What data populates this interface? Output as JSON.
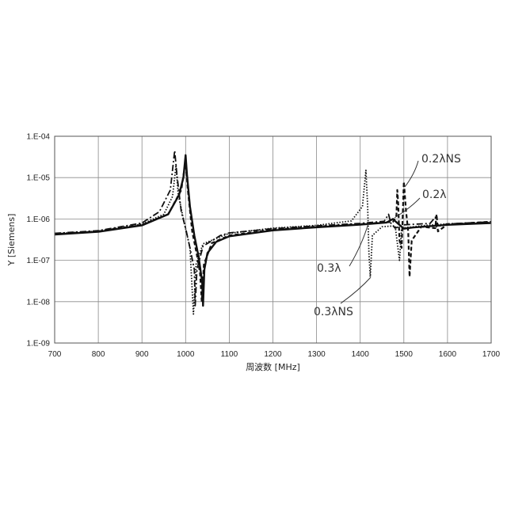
{
  "chart_data": {
    "type": "line",
    "title": "",
    "xlabel": "周波数 [MHz]",
    "ylabel": "Y [Siemens]",
    "xlim": [
      700,
      1700
    ],
    "ylim": [
      1e-09,
      0.0001
    ],
    "yscale": "log",
    "grid": true,
    "x_ticks": [
      "700",
      "800",
      "900",
      "1000",
      "1100",
      "1200",
      "1300",
      "1400",
      "1500",
      "1600",
      "1700"
    ],
    "y_ticks": [
      "1.E-09",
      "1.E-08",
      "1.E-07",
      "1.E-06",
      "1.E-05",
      "1.E-04"
    ],
    "annotations": [
      {
        "text": "0.2λNS",
        "points_to_x": 1500
      },
      {
        "text": "0.2λ",
        "points_to_x": 1480
      },
      {
        "text": "0.3λ",
        "points_to_x": 1455
      },
      {
        "text": "0.3λNS",
        "points_to_x": 1430
      }
    ],
    "series": [
      {
        "style": "solid",
        "points": [
          [
            700,
            4.2e-07
          ],
          [
            800,
            4.9e-07
          ],
          [
            900,
            7e-07
          ],
          [
            960,
            1.3e-06
          ],
          [
            985,
            3.8e-06
          ],
          [
            995,
            1e-05
          ],
          [
            1000,
            3.5e-05
          ],
          [
            1003,
            1.2e-05
          ],
          [
            1010,
            2e-06
          ],
          [
            1020,
            4e-07
          ],
          [
            1030,
            1.2e-07
          ],
          [
            1038,
            3e-08
          ],
          [
            1040,
            8e-09
          ],
          [
            1043,
            6e-08
          ],
          [
            1050,
            1.5e-07
          ],
          [
            1070,
            2.8e-07
          ],
          [
            1100,
            3.8e-07
          ],
          [
            1200,
            5.3e-07
          ],
          [
            1300,
            6.3e-07
          ],
          [
            1400,
            7.3e-07
          ],
          [
            1460,
            8.2e-07
          ],
          [
            1475,
            1e-06
          ],
          [
            1485,
            8e-07
          ],
          [
            1500,
            5.8e-07
          ],
          [
            1520,
            6.2e-07
          ],
          [
            1600,
            7.2e-07
          ],
          [
            1700,
            8e-07
          ]
        ]
      },
      {
        "style": "dash-dot",
        "points": [
          [
            700,
            4.5e-07
          ],
          [
            800,
            5.2e-07
          ],
          [
            900,
            8e-07
          ],
          [
            940,
            1.5e-06
          ],
          [
            965,
            5e-06
          ],
          [
            975,
            4.5e-05
          ],
          [
            980,
            1.2e-05
          ],
          [
            990,
            1.5e-06
          ],
          [
            1000,
            6e-07
          ],
          [
            1010,
            2e-07
          ],
          [
            1020,
            6e-08
          ],
          [
            1022,
            8e-09
          ],
          [
            1026,
            6e-08
          ],
          [
            1040,
            2.2e-07
          ],
          [
            1080,
            4e-07
          ],
          [
            1100,
            4.6e-07
          ],
          [
            1200,
            5.8e-07
          ],
          [
            1300,
            6.8e-07
          ],
          [
            1400,
            7.8e-07
          ],
          [
            1455,
            8.8e-07
          ],
          [
            1465,
            1.3e-06
          ],
          [
            1470,
            8e-07
          ],
          [
            1480,
            6e-07
          ],
          [
            1500,
            7.2e-07
          ],
          [
            1560,
            7.8e-07
          ],
          [
            1572,
            1.1e-06
          ],
          [
            1575,
            6.5e-07
          ],
          [
            1600,
            7.6e-07
          ],
          [
            1700,
            8.5e-07
          ]
        ]
      },
      {
        "style": "dotted",
        "points": [
          [
            700,
            4.4e-07
          ],
          [
            800,
            5.1e-07
          ],
          [
            900,
            7.5e-07
          ],
          [
            950,
            1.3e-06
          ],
          [
            970,
            3.5e-06
          ],
          [
            978,
            2e-05
          ],
          [
            983,
            4e-06
          ],
          [
            995,
            1e-06
          ],
          [
            1010,
            2e-07
          ],
          [
            1018,
            5e-09
          ],
          [
            1024,
            8e-08
          ],
          [
            1040,
            2.5e-07
          ],
          [
            1100,
            4.5e-07
          ],
          [
            1200,
            6e-07
          ],
          [
            1300,
            7e-07
          ],
          [
            1380,
            9e-07
          ],
          [
            1405,
            2e-06
          ],
          [
            1413,
            1.5e-05
          ],
          [
            1417,
            2e-06
          ],
          [
            1420,
            1.5e-07
          ],
          [
            1423,
            4e-08
          ],
          [
            1428,
            4e-07
          ],
          [
            1450,
            6.5e-07
          ],
          [
            1480,
            6.8e-07
          ],
          [
            1490,
            1e-07
          ],
          [
            1495,
            6e-07
          ],
          [
            1550,
            7e-07
          ],
          [
            1600,
            7.6e-07
          ],
          [
            1700,
            8.3e-07
          ]
        ]
      },
      {
        "style": "dashed",
        "points": [
          [
            700,
            4.3e-07
          ],
          [
            800,
            5e-07
          ],
          [
            900,
            7.2e-07
          ],
          [
            960,
            1.3e-06
          ],
          [
            990,
            5e-06
          ],
          [
            1000,
            2.5e-05
          ],
          [
            1005,
            5e-06
          ],
          [
            1015,
            5e-07
          ],
          [
            1025,
            1.5e-07
          ],
          [
            1033,
            5e-08
          ],
          [
            1037,
            1e-08
          ],
          [
            1042,
            8e-08
          ],
          [
            1060,
            2.6e-07
          ],
          [
            1100,
            4e-07
          ],
          [
            1200,
            5.5e-07
          ],
          [
            1300,
            6.5e-07
          ],
          [
            1400,
            7.5e-07
          ],
          [
            1475,
            8.5e-07
          ],
          [
            1483,
            1.2e-06
          ],
          [
            1485,
            5e-06
          ],
          [
            1487,
            2.5e-06
          ],
          [
            1490,
            3e-07
          ],
          [
            1495,
            2e-07
          ],
          [
            1500,
            8e-06
          ],
          [
            1505,
            1.5e-06
          ],
          [
            1510,
            5e-07
          ],
          [
            1513,
            4e-08
          ],
          [
            1518,
            3e-07
          ],
          [
            1540,
            6.5e-07
          ],
          [
            1572,
            6e-07
          ],
          [
            1575,
            1.3e-06
          ],
          [
            1578,
            5e-07
          ],
          [
            1600,
            7.4e-07
          ],
          [
            1700,
            8.6e-07
          ]
        ]
      }
    ]
  }
}
